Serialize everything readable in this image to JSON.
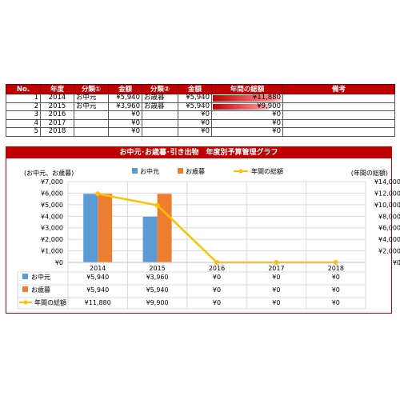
{
  "table": {
    "headers": [
      "No.",
      "年度",
      "分類①",
      "金額",
      "分類②",
      "金額",
      "年間の総額",
      "備考"
    ],
    "rows": [
      {
        "no": "1",
        "year": "2014",
        "cat1": "お中元",
        "amt1": "¥5,940",
        "cat2": "お歳暮",
        "amt2": "¥5,940",
        "total": "¥11,880",
        "total_value": 11880,
        "note": ""
      },
      {
        "no": "2",
        "year": "2015",
        "cat1": "お中元",
        "amt1": "¥3,960",
        "cat2": "お歳暮",
        "amt2": "¥5,940",
        "total": "¥9,900",
        "total_value": 9900,
        "note": ""
      },
      {
        "no": "3",
        "year": "2016",
        "cat1": "",
        "amt1": "¥0",
        "cat2": "",
        "amt2": "¥0",
        "total": "¥0",
        "total_value": 0,
        "note": ""
      },
      {
        "no": "4",
        "year": "2017",
        "cat1": "",
        "amt1": "¥0",
        "cat2": "",
        "amt2": "¥0",
        "total": "¥0",
        "total_value": 0,
        "note": ""
      },
      {
        "no": "5",
        "year": "2018",
        "cat1": "",
        "amt1": "¥0",
        "cat2": "",
        "amt2": "¥0",
        "total": "¥0",
        "total_value": 0,
        "note": ""
      }
    ]
  },
  "chart_title": "お中元･お歳暮･引き出物　年度別予算管理グラフ",
  "colors": {
    "header_red": "#c00000",
    "series_blue": "#5b9bd5",
    "series_orange": "#ed7d31",
    "series_yellow": "#ffc000"
  },
  "chart_data": {
    "type": "bar",
    "title": "お中元･お歳暮･引き出物　年度別予算管理グラフ",
    "categories": [
      "2014",
      "2015",
      "2016",
      "2017",
      "2018"
    ],
    "series": [
      {
        "name": "お中元",
        "type": "bar",
        "axis": "left",
        "values": [
          5940,
          3960,
          0,
          0,
          0
        ],
        "labels": [
          "¥5,940",
          "¥3,960",
          "¥0",
          "¥0",
          "¥0"
        ]
      },
      {
        "name": "お歳暮",
        "type": "bar",
        "axis": "left",
        "values": [
          5940,
          5940,
          0,
          0,
          0
        ],
        "labels": [
          "¥5,940",
          "¥5,940",
          "¥0",
          "¥0",
          "¥0"
        ]
      },
      {
        "name": "年間の総額",
        "type": "line",
        "axis": "right",
        "values": [
          11880,
          9900,
          0,
          0,
          0
        ],
        "labels": [
          "¥11,880",
          "¥9,900",
          "¥0",
          "¥0",
          "¥0"
        ]
      }
    ],
    "left_axis": {
      "label": "(お中元、お歳暮)",
      "ylim": [
        0,
        7000
      ],
      "ticks": [
        "¥0",
        "¥1,000",
        "¥2,000",
        "¥3,000",
        "¥4,000",
        "¥5,000",
        "¥6,000",
        "¥7,000"
      ]
    },
    "right_axis": {
      "label": "(年間の総額)",
      "ylim": [
        0,
        14000
      ],
      "ticks": [
        "¥0",
        "¥2,000",
        "¥4,000",
        "¥6,000",
        "¥8,000",
        "¥10,000",
        "¥12,000",
        "¥14,000"
      ]
    },
    "legend_position": "top",
    "grid": true,
    "data_table": true
  }
}
